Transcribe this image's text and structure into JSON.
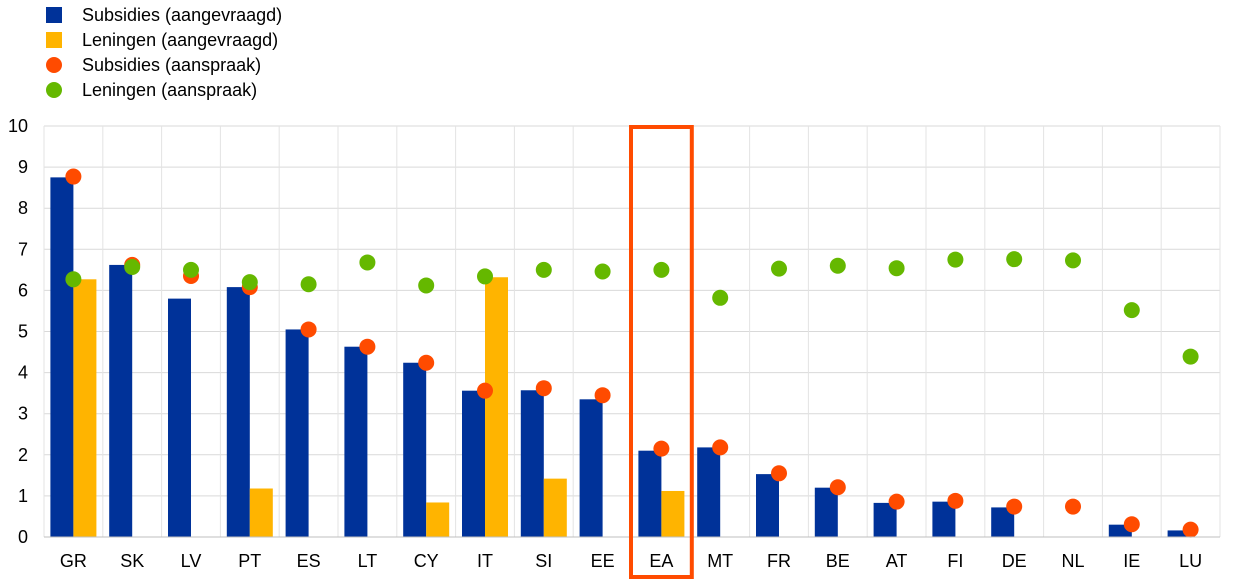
{
  "chart_data": {
    "type": "bar",
    "categories": [
      "GR",
      "SK",
      "LV",
      "PT",
      "ES",
      "LT",
      "CY",
      "IT",
      "SI",
      "EE",
      "EA",
      "MT",
      "FR",
      "BE",
      "AT",
      "FI",
      "DE",
      "NL",
      "IE",
      "LU"
    ],
    "series": [
      {
        "name": "Subsidies (aangevraagd)",
        "kind": "bar",
        "color": "#003299",
        "values": [
          8.75,
          6.62,
          5.8,
          6.08,
          5.05,
          4.63,
          4.24,
          3.56,
          3.57,
          3.35,
          2.1,
          2.18,
          1.53,
          1.2,
          0.83,
          0.86,
          0.72,
          0,
          0.3,
          0.16
        ]
      },
      {
        "name": "Leningen (aangevraagd)",
        "kind": "bar",
        "color": "#FFB400",
        "values": [
          6.27,
          0,
          0,
          1.18,
          0,
          0,
          0.84,
          6.32,
          1.42,
          0,
          1.12,
          0,
          0,
          0,
          0,
          0,
          0,
          0,
          0,
          0
        ]
      },
      {
        "name": "Subsidies (aanspraak)",
        "kind": "dot",
        "color": "#FF4B00",
        "values": [
          8.77,
          6.62,
          6.35,
          6.08,
          5.05,
          4.63,
          4.24,
          3.56,
          3.62,
          3.45,
          2.15,
          2.18,
          1.55,
          1.21,
          0.86,
          0.88,
          0.74,
          0.74,
          0.31,
          0.18
        ]
      },
      {
        "name": "Leningen (aanspraak)",
        "kind": "dot",
        "color": "#65B800",
        "values": [
          6.27,
          6.57,
          6.5,
          6.2,
          6.15,
          6.68,
          6.12,
          6.34,
          6.5,
          6.46,
          6.5,
          5.82,
          6.53,
          6.6,
          6.54,
          6.75,
          6.76,
          6.73,
          5.52,
          4.39
        ]
      }
    ],
    "ylim": [
      0,
      10
    ],
    "yticks": [
      "0",
      "1",
      "2",
      "3",
      "4",
      "5",
      "6",
      "7",
      "8",
      "9",
      "10"
    ],
    "grid": true,
    "legend_position": "top-left",
    "highlight": {
      "category": "EA",
      "color": "#FF4B00"
    }
  }
}
